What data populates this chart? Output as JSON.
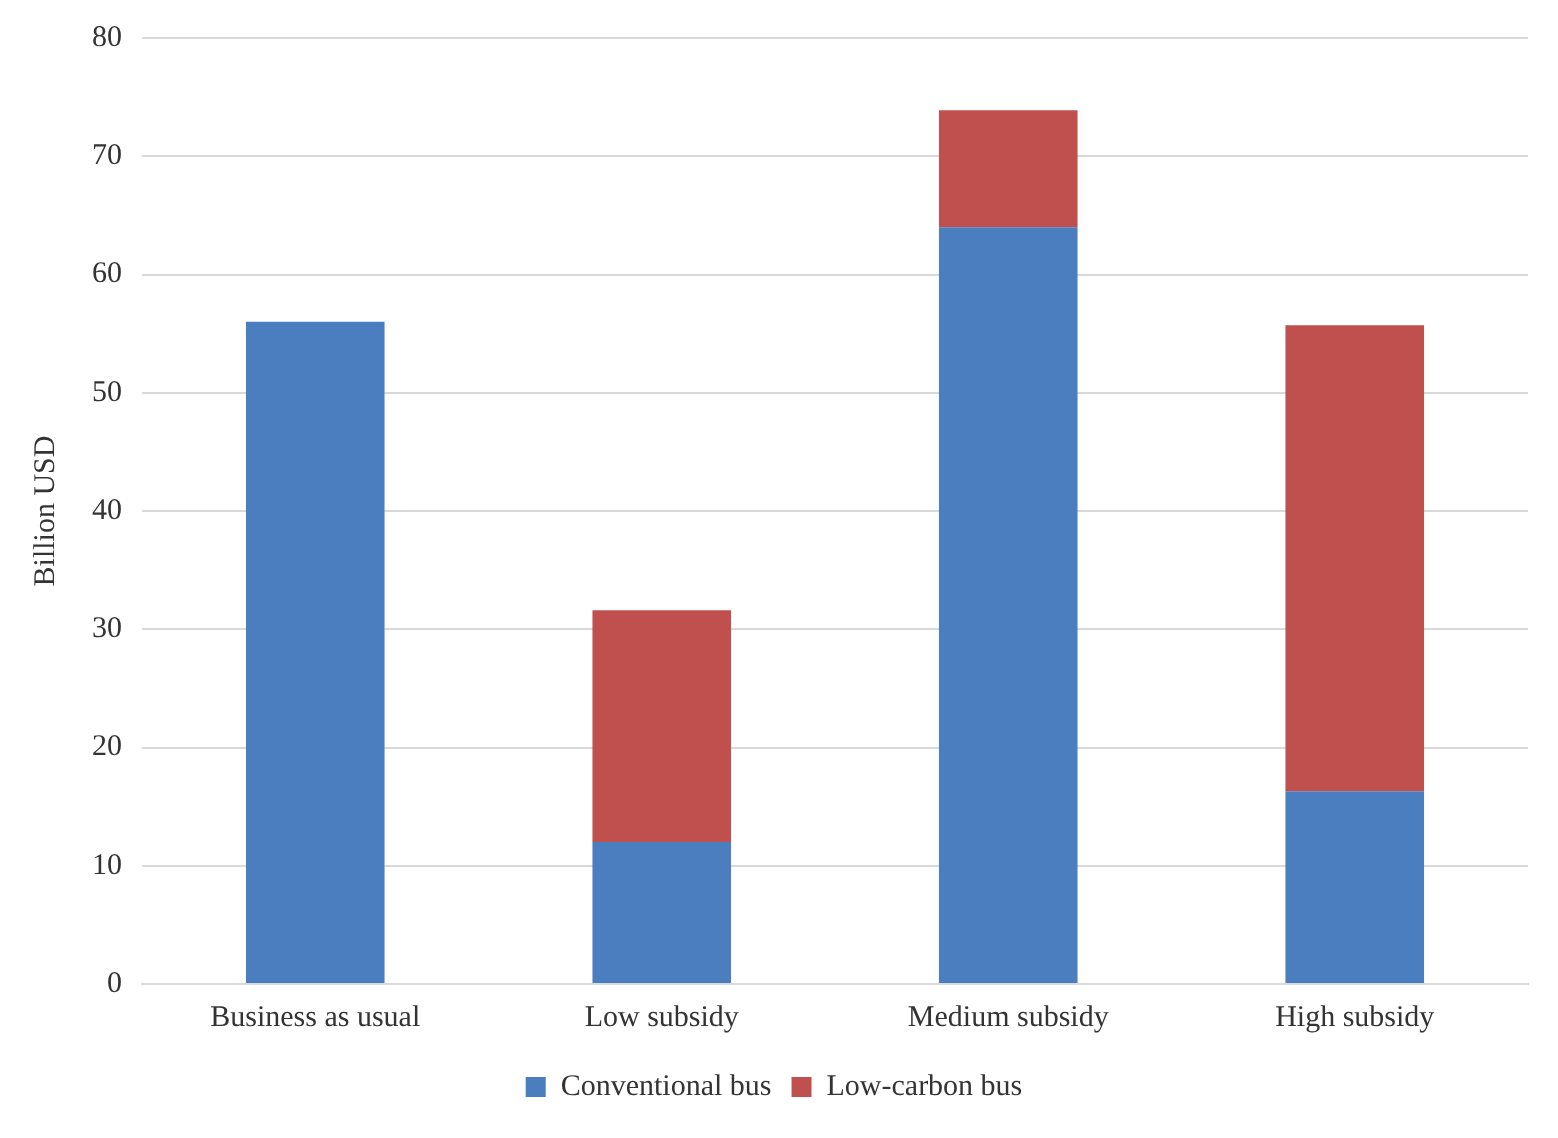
{
  "chart_data": {
    "type": "bar",
    "ylabel": "Billion USD",
    "categories": [
      "Business as usual",
      "Low subsidy",
      "Medium subsidy",
      "High subsidy"
    ],
    "series": [
      {
        "name": "Conventional bus",
        "color": "#4a7ebf",
        "values": [
          56,
          12,
          64,
          16.3
        ]
      },
      {
        "name": "Low-carbon bus",
        "color": "#c0504d",
        "values": [
          0,
          19.6,
          9.9,
          39.4
        ]
      }
    ],
    "stacked": true,
    "ylim": [
      0,
      80
    ],
    "yticks": [
      0,
      10,
      20,
      30,
      40,
      50,
      60,
      70,
      80
    ],
    "grid": "y",
    "legend": "bottom"
  }
}
